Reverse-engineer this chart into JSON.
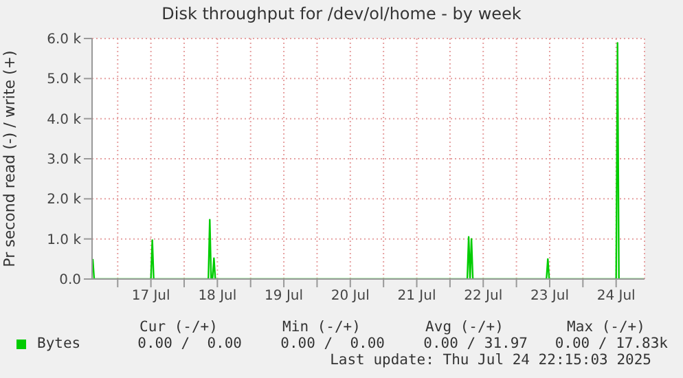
{
  "chart_data": {
    "type": "line",
    "title": "Disk throughput for /dev/ol/home - by week",
    "ylabel": "Pr second read (-) / write (+)",
    "x": [
      "2025-07-16T15:00",
      "2025-07-16T15:30",
      "2025-07-17T12:00",
      "2025-07-17T12:30",
      "2025-07-17T13:00",
      "2025-07-18T08:45",
      "2025-07-18T09:15",
      "2025-07-18T09:45",
      "2025-07-18T10:15",
      "2025-07-18T10:45",
      "2025-07-18T11:15",
      "2025-07-22T06:15",
      "2025-07-22T06:45",
      "2025-07-22T07:15",
      "2025-07-22T07:45",
      "2025-07-22T08:15",
      "2025-07-23T10:50",
      "2025-07-23T11:20",
      "2025-07-23T11:50",
      "2025-07-24T12:00",
      "2025-07-24T12:30",
      "2025-07-24T13:00",
      "2025-07-24T22:00"
    ],
    "series": [
      {
        "name": "Bytes",
        "color": "#00cc00",
        "values": [
          500,
          0,
          0,
          970,
          0,
          0,
          1480,
          0,
          0,
          520,
          0,
          0,
          1050,
          0,
          1000,
          0,
          0,
          500,
          0,
          0,
          5890,
          0,
          0
        ]
      }
    ],
    "xlim": [
      "2025-07-16T14:45",
      "2025-07-24T22:15"
    ],
    "xticks": [
      {
        "value": "2025-07-17T00:00",
        "label": null
      },
      {
        "value": "2025-07-17T12:00",
        "label": "17 Jul"
      },
      {
        "value": "2025-07-18T00:00",
        "label": null
      },
      {
        "value": "2025-07-18T12:00",
        "label": "18 Jul"
      },
      {
        "value": "2025-07-19T00:00",
        "label": null
      },
      {
        "value": "2025-07-19T12:00",
        "label": "19 Jul"
      },
      {
        "value": "2025-07-20T00:00",
        "label": null
      },
      {
        "value": "2025-07-20T12:00",
        "label": "20 Jul"
      },
      {
        "value": "2025-07-21T00:00",
        "label": null
      },
      {
        "value": "2025-07-21T12:00",
        "label": "21 Jul"
      },
      {
        "value": "2025-07-22T00:00",
        "label": null
      },
      {
        "value": "2025-07-22T12:00",
        "label": "22 Jul"
      },
      {
        "value": "2025-07-23T00:00",
        "label": null
      },
      {
        "value": "2025-07-23T12:00",
        "label": "23 Jul"
      },
      {
        "value": "2025-07-24T00:00",
        "label": null
      },
      {
        "value": "2025-07-24T12:00",
        "label": "24 Jul"
      }
    ],
    "ylim": [
      0,
      6000
    ],
    "yticks": [
      {
        "value": 0,
        "label": "0.0"
      },
      {
        "value": 1000,
        "label": "1.0 k"
      },
      {
        "value": 2000,
        "label": "2.0 k"
      },
      {
        "value": 3000,
        "label": "3.0 k"
      },
      {
        "value": 4000,
        "label": "4.0 k"
      },
      {
        "value": 5000,
        "label": "5.0 k"
      },
      {
        "value": 6000,
        "label": "6.0 k"
      }
    ],
    "grid": true,
    "legend": "bottom",
    "marker": "none",
    "line_style": "solid",
    "annotations": [
      "Cur (-/+)",
      "Min (-/+)",
      "Avg (-/+)",
      "Max (-/+)",
      "0.00 /  0.00",
      "0.00 /  0.00",
      "0.00 / 31.97",
      "0.00 / 17.83k",
      "Last update: Thu Jul 24 22:15:03 2025"
    ]
  }
}
